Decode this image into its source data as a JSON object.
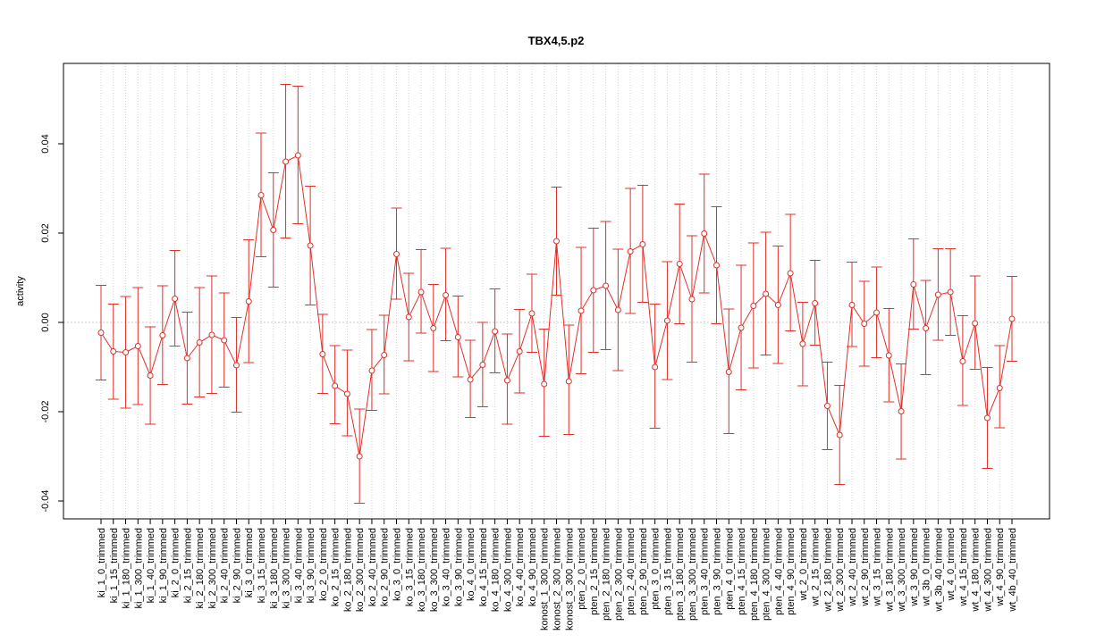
{
  "chart_data": {
    "type": "line",
    "title": "TBX4,5.p2",
    "xlabel": "",
    "ylabel": "activity",
    "ylim": [
      -0.044,
      0.058
    ],
    "yticks": [
      -0.04,
      -0.02,
      0.0,
      0.02,
      0.04
    ],
    "ytick_labels": [
      "-0.04",
      "-0.02",
      "0.00",
      "0.02",
      "0.04"
    ],
    "grid": true,
    "reference_line": 0,
    "color": "#e0302a",
    "categories": [
      "ki_1_0_trimmed",
      "ki_1_15_trimmed",
      "ki_1_180_trimmed",
      "ki_1_300_trimmed",
      "ki_1_40_trimmed",
      "ki_1_90_trimmed",
      "ki_2_0_trimmed",
      "ki_2_15_trimmed",
      "ki_2_180_trimmed",
      "ki_2_300_trimmed",
      "ki_2_40_trimmed",
      "ki_2_90_trimmed",
      "ki_3_0_trimmed",
      "ki_3_15_trimmed",
      "ki_3_180_trimmed",
      "ki_3_300_trimmed",
      "ki_3_40_trimmed",
      "ki_3_90_trimmed",
      "ko_2_0_trimmed",
      "ko_2_15_trimmed",
      "ko_2_180_trimmed",
      "ko_2_300_trimmed",
      "ko_2_40_trimmed",
      "ko_2_90_trimmed",
      "ko_3_0_trimmed",
      "ko_3_15_trimmed",
      "ko_3_180_trimmed",
      "ko_3_300_trimmed",
      "ko_3_40_trimmed",
      "ko_3_90_trimmed",
      "ko_4_0_trimmed",
      "ko_4_15_trimmed",
      "ko_4_180_trimmed",
      "ko_4_300_trimmed",
      "ko_4_40_trimmed",
      "ko_4_90_trimmed",
      "konost_1_300_trimmed",
      "konost_2_300_trimmed",
      "konost_3_300_trimmed",
      "pten_2_0_trimmed",
      "pten_2_15_trimmed",
      "pten_2_180_trimmed",
      "pten_2_300_trimmed",
      "pten_2_40_trimmed",
      "pten_2_90_trimmed",
      "pten_3_0_trimmed",
      "pten_3_15_trimmed",
      "pten_3_180_trimmed",
      "pten_3_300_trimmed",
      "pten_3_40_trimmed",
      "pten_3_90_trimmed",
      "pten_4_0_trimmed",
      "pten_4_15_trimmed",
      "pten_4_180_trimmed",
      "pten_4_300_trimmed",
      "pten_4_40_trimmed",
      "pten_4_90_trimmed",
      "wt_2_0_trimmed",
      "wt_2_15_trimmed",
      "wt_2_180_trimmed",
      "wt_2_300_trimmed",
      "wt_2_40_trimmed",
      "wt_2_90_trimmed",
      "wt_3_15_trimmed",
      "wt_3_180_trimmed",
      "wt_3_300_trimmed",
      "wt_3_90_trimmed",
      "wt_3b_0_trimmed",
      "wt_3b_40_trimmed",
      "wt_4_0_trimmed",
      "wt_4_15_trimmed",
      "wt_4_180_trimmed",
      "wt_4_300_trimmed",
      "wt_4_90_trimmed",
      "wt_4b_40_trimmed"
    ],
    "values": [
      -0.0023,
      -0.0065,
      -0.0067,
      -0.0053,
      -0.0119,
      -0.0029,
      0.0053,
      -0.008,
      -0.0045,
      -0.0028,
      -0.004,
      -0.0096,
      0.0047,
      0.0285,
      0.0207,
      0.036,
      0.0374,
      0.0172,
      -0.0071,
      -0.0142,
      -0.016,
      -0.03,
      -0.0108,
      -0.0073,
      0.0153,
      0.0012,
      0.0068,
      -0.0013,
      0.0061,
      -0.0033,
      -0.0128,
      -0.0095,
      -0.002,
      -0.013,
      -0.0065,
      0.002,
      -0.0138,
      0.0182,
      -0.0132,
      0.0026,
      0.0072,
      0.0082,
      0.0028,
      0.0159,
      0.0175,
      -0.01,
      0.0004,
      0.0131,
      0.0052,
      0.0199,
      0.0128,
      -0.0111,
      -0.0012,
      0.0037,
      0.0064,
      0.0039,
      0.011,
      -0.0048,
      0.0043,
      -0.0187,
      -0.0252,
      0.0039,
      -0.0003,
      0.0022,
      -0.0074,
      -0.0199,
      0.0085,
      -0.0013,
      0.0062,
      0.0068,
      -0.0087,
      -0.0002,
      -0.0214,
      -0.0147,
      0.0008
    ],
    "lower": [
      -0.0129,
      -0.0172,
      -0.0192,
      -0.0184,
      -0.0228,
      -0.0139,
      -0.0053,
      -0.0183,
      -0.0167,
      -0.0159,
      -0.0145,
      -0.0201,
      -0.009,
      0.0147,
      0.0079,
      0.0189,
      0.0221,
      0.0039,
      -0.0159,
      -0.0227,
      -0.0254,
      -0.0405,
      -0.0197,
      -0.016,
      0.0052,
      -0.0086,
      -0.0024,
      -0.011,
      -0.0041,
      -0.0122,
      -0.0213,
      -0.0189,
      -0.0113,
      -0.0228,
      -0.0158,
      -0.0067,
      -0.0255,
      0.0061,
      -0.0251,
      -0.0115,
      -0.0067,
      -0.0061,
      -0.0108,
      0.002,
      0.0045,
      -0.0237,
      -0.0128,
      -0.0003,
      -0.0089,
      0.0066,
      -0.0003,
      -0.0249,
      -0.0151,
      -0.0102,
      -0.0073,
      -0.0092,
      -0.0019,
      -0.0142,
      -0.0051,
      -0.0285,
      -0.0363,
      -0.0054,
      -0.0098,
      -0.0079,
      -0.0178,
      -0.0306,
      -0.0015,
      -0.0117,
      -0.004,
      -0.0029,
      -0.0186,
      -0.0105,
      -0.0327,
      -0.0236,
      -0.0087
    ],
    "upper": [
      0.0083,
      0.0041,
      0.0058,
      0.0078,
      -0.001,
      0.0082,
      0.0161,
      0.0023,
      0.0078,
      0.0104,
      0.0066,
      0.0011,
      0.0185,
      0.0424,
      0.0335,
      0.0533,
      0.0529,
      0.0305,
      0.0018,
      -0.0052,
      -0.0062,
      -0.0194,
      -0.0016,
      0.0016,
      0.0256,
      0.011,
      0.0163,
      0.0085,
      0.0166,
      0.0059,
      -0.004,
      0.0,
      0.0075,
      -0.0026,
      0.0029,
      0.0108,
      -0.0015,
      0.0303,
      -0.0006,
      0.0168,
      0.0211,
      0.0226,
      0.0164,
      0.03,
      0.0307,
      0.0041,
      0.0136,
      0.0265,
      0.0194,
      0.0332,
      0.0259,
      0.003,
      0.0128,
      0.0178,
      0.0202,
      0.0171,
      0.0242,
      0.0045,
      0.0139,
      -0.0089,
      -0.0141,
      0.0135,
      0.0092,
      0.0124,
      0.0031,
      -0.0093,
      0.0187,
      0.0094,
      0.0165,
      0.0165,
      0.0015,
      0.0104,
      -0.0101,
      -0.0052,
      0.0103
    ]
  }
}
